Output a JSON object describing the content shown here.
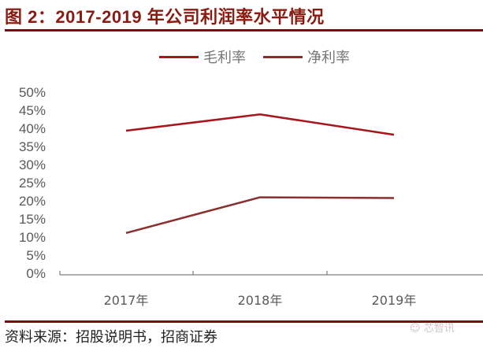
{
  "header": {
    "title": "图 2：2017-2019 年公司利润率水平情况"
  },
  "legend": {
    "items": [
      {
        "label": "毛利率",
        "color": "#a8151c"
      },
      {
        "label": "净利率",
        "color": "#8b2e2e"
      }
    ]
  },
  "yaxis": {
    "ticks": [
      "50%",
      "45%",
      "40%",
      "35%",
      "30%",
      "25%",
      "20%",
      "15%",
      "10%",
      "5%",
      "0%"
    ]
  },
  "xaxis": {
    "ticks": [
      "2017年",
      "2018年",
      "2019年"
    ]
  },
  "footer": {
    "source": "资料来源：招股说明书，招商证券",
    "watermark": "芯智讯"
  },
  "chart_data": {
    "type": "line",
    "title": "2017-2019 年公司利润率水平情况",
    "categories": [
      "2017年",
      "2018年",
      "2019年"
    ],
    "series": [
      {
        "name": "毛利率",
        "values": [
          39.6,
          44.1,
          38.5
        ],
        "color": "#a8151c"
      },
      {
        "name": "净利率",
        "values": [
          11.5,
          21.3,
          21.1
        ],
        "color": "#8b2e2e"
      }
    ],
    "xlabel": "",
    "ylabel": "",
    "ylim": [
      0,
      50
    ],
    "ytick_step": 5,
    "ytick_format": "percent",
    "grid": false,
    "legend_position": "top"
  }
}
